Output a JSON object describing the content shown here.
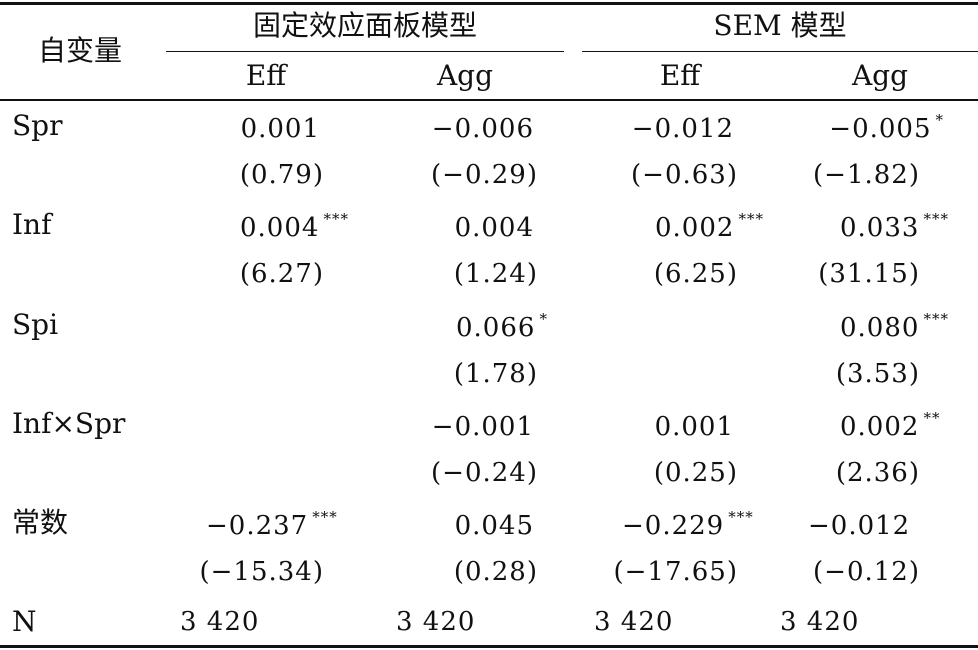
{
  "header": {
    "var_label": "自变量",
    "group_fe": "固定效应面板模型",
    "group_sem": "SEM 模型",
    "sub": [
      "Eff",
      "Agg",
      "Eff",
      "Agg"
    ]
  },
  "rows": [
    {
      "label": "Spr",
      "coef": [
        {
          "v": "0.001",
          "s": ""
        },
        {
          "v": "−0.006",
          "s": ""
        },
        {
          "v": "−0.012",
          "s": ""
        },
        {
          "v": "−0.005",
          "s": "*"
        }
      ],
      "t": [
        "(0.79)",
        "(−0.29)",
        "(−0.63)",
        "(−1.82)"
      ]
    },
    {
      "label": "Inf",
      "coef": [
        {
          "v": "0.004",
          "s": "***"
        },
        {
          "v": "0.004",
          "s": ""
        },
        {
          "v": "0.002",
          "s": "***"
        },
        {
          "v": "0.033",
          "s": "***"
        }
      ],
      "t": [
        "(6.27)",
        "(1.24)",
        "(6.25)",
        "(31.15)"
      ]
    },
    {
      "label": "Spi",
      "coef": [
        {
          "v": "",
          "s": ""
        },
        {
          "v": "0.066",
          "s": "*"
        },
        {
          "v": "",
          "s": ""
        },
        {
          "v": "0.080",
          "s": "***"
        }
      ],
      "t": [
        "",
        "(1.78)",
        "",
        "(3.53)"
      ]
    },
    {
      "label": "Inf×Spr",
      "coef": [
        {
          "v": "",
          "s": ""
        },
        {
          "v": "−0.001",
          "s": ""
        },
        {
          "v": "0.001",
          "s": ""
        },
        {
          "v": "0.002",
          "s": "**"
        }
      ],
      "t": [
        "",
        "(−0.24)",
        "(0.25)",
        "(2.36)"
      ]
    },
    {
      "label": "常数",
      "coef": [
        {
          "v": "−0.237",
          "s": "***"
        },
        {
          "v": "0.045",
          "s": ""
        },
        {
          "v": "−0.229",
          "s": "***"
        },
        {
          "v": "−0.012",
          "s": ""
        }
      ],
      "t": [
        "(−15.34)",
        "(0.28)",
        "(−17.65)",
        "(−0.12)"
      ]
    }
  ],
  "n_row": {
    "label": "N",
    "values": [
      "3 420",
      "3 420",
      "3 420",
      "3 420"
    ]
  }
}
